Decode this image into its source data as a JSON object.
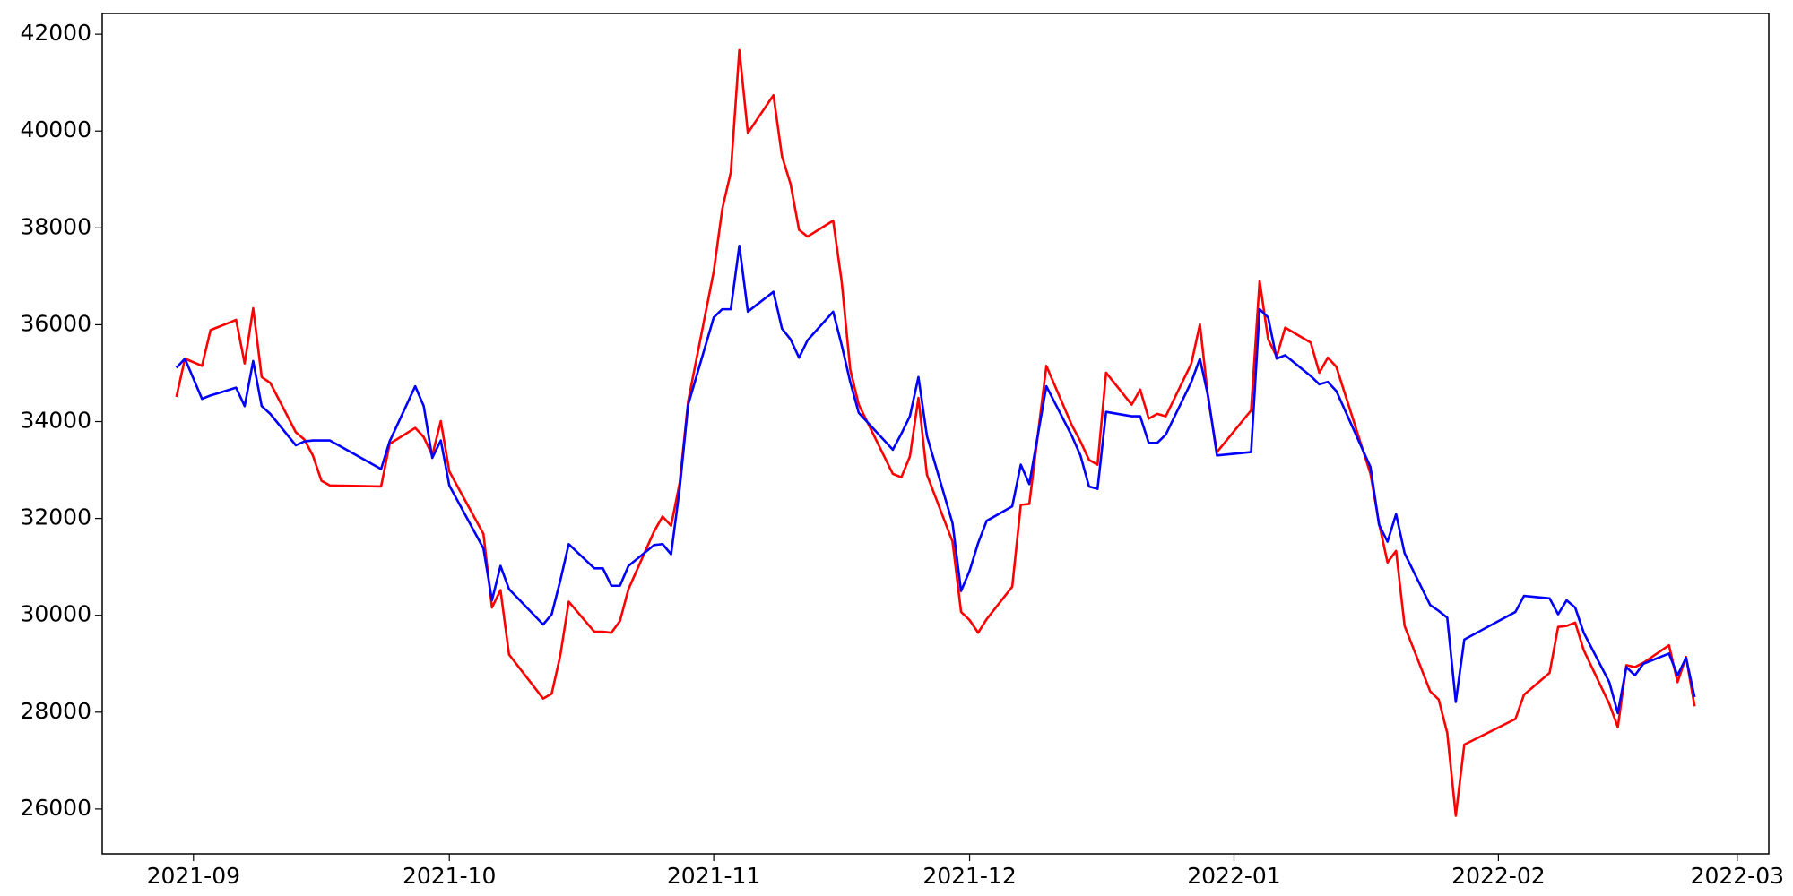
{
  "chart_data": {
    "type": "line",
    "x": [
      18869,
      18870,
      18872,
      18873,
      18876,
      18877,
      18878,
      18879,
      18880,
      18883,
      18884,
      18885,
      18886,
      18887,
      18893,
      18894,
      18897,
      18898,
      18899,
      18900,
      18901,
      18905,
      18906,
      18907,
      18908,
      18912,
      18913,
      18914,
      18915,
      18918,
      18919,
      18920,
      18921,
      18922,
      18925,
      18926,
      18927,
      18928,
      18929,
      18932,
      18933,
      18934,
      18935,
      18936,
      18939,
      18940,
      18941,
      18942,
      18943,
      18946,
      18947,
      18948,
      18949,
      18953,
      18954,
      18955,
      18956,
      18957,
      18960,
      18961,
      18962,
      18963,
      18964,
      18967,
      18968,
      18969,
      18971,
      18974,
      18975,
      18976,
      18977,
      18978,
      18981,
      18982,
      18983,
      18984,
      18985,
      18988,
      18989,
      18990,
      18991,
      18995,
      18996,
      18997,
      18998,
      18999,
      19002,
      19003,
      19004,
      19005,
      19009,
      19010,
      19011,
      19012,
      19013,
      19016,
      19017,
      19018,
      19019,
      19020,
      19026,
      19027,
      19030,
      19031,
      19032,
      19033,
      19034,
      19037,
      19038,
      19039,
      19040,
      19041,
      19044,
      19045,
      19046,
      19047
    ],
    "series": [
      {
        "color": "#ff0000",
        "values": [
          34510,
          35300,
          35150,
          35890,
          36100,
          35200,
          36340,
          34920,
          34800,
          33780,
          33630,
          33300,
          32780,
          32680,
          32660,
          33540,
          33870,
          33680,
          33300,
          34010,
          32970,
          31680,
          30160,
          30520,
          29190,
          28280,
          28380,
          29160,
          30280,
          29660,
          29660,
          29640,
          29880,
          30540,
          31730,
          32040,
          31850,
          32730,
          34420,
          37100,
          38390,
          39150,
          41670,
          39960,
          40740,
          39480,
          38910,
          37960,
          37820,
          38150,
          36890,
          35080,
          34350,
          32920,
          32850,
          33280,
          34490,
          32900,
          31520,
          30070,
          29900,
          29640,
          29920,
          30590,
          32280,
          32300,
          35150,
          33920,
          33590,
          33210,
          33110,
          35010,
          34350,
          34660,
          34060,
          34160,
          34110,
          35200,
          36010,
          34440,
          33370,
          34230,
          36910,
          35700,
          35340,
          35940,
          35630,
          35010,
          35320,
          35130,
          32920,
          31900,
          31090,
          31330,
          29780,
          28430,
          28260,
          27570,
          25860,
          27330,
          27860,
          28360,
          28810,
          29760,
          29780,
          29850,
          29280,
          28170,
          27690,
          28970,
          28930,
          29020,
          29380,
          28620,
          29140,
          28120
        ]
      },
      {
        "color": "#0000ff",
        "values": [
          35110,
          35300,
          34470,
          34540,
          34700,
          34320,
          35250,
          34320,
          34160,
          33510,
          33590,
          33610,
          33610,
          33610,
          33020,
          33590,
          34730,
          34320,
          33250,
          33610,
          32680,
          31380,
          30310,
          31020,
          30540,
          29810,
          30020,
          30710,
          31470,
          30970,
          30970,
          30610,
          30610,
          31020,
          31450,
          31470,
          31260,
          32610,
          34350,
          36150,
          36320,
          36320,
          37630,
          36270,
          36680,
          35920,
          35700,
          35320,
          35680,
          36270,
          35580,
          34820,
          34180,
          33420,
          33750,
          34110,
          34920,
          33700,
          31900,
          30500,
          30920,
          31490,
          31950,
          32250,
          33110,
          32710,
          34730,
          33700,
          33300,
          32660,
          32610,
          34200,
          34110,
          34110,
          33560,
          33560,
          33730,
          34820,
          35300,
          34490,
          33300,
          33370,
          36320,
          36150,
          35300,
          35370,
          34940,
          34770,
          34820,
          34630,
          33060,
          31870,
          31520,
          32090,
          31280,
          30210,
          30090,
          29950,
          28210,
          29500,
          30070,
          30400,
          30350,
          30020,
          30310,
          30160,
          29640,
          28620,
          27980,
          28930,
          28760,
          29000,
          29210,
          28760,
          29120,
          28310
        ]
      }
    ],
    "xlim": [
      18860.3,
      19055.7
    ],
    "xticks": [
      {
        "value": 18871,
        "label": "2021-09"
      },
      {
        "value": 18901,
        "label": "2021-10"
      },
      {
        "value": 18932,
        "label": "2021-11"
      },
      {
        "value": 18962,
        "label": "2021-12"
      },
      {
        "value": 18993,
        "label": "2022-01"
      },
      {
        "value": 19024,
        "label": "2022-02"
      },
      {
        "value": 19052,
        "label": "2022-03"
      }
    ],
    "ylim": [
      25073,
      42428
    ],
    "yticks": [
      26000,
      28000,
      30000,
      32000,
      34000,
      36000,
      38000,
      40000,
      42000
    ],
    "grid": false
  }
}
